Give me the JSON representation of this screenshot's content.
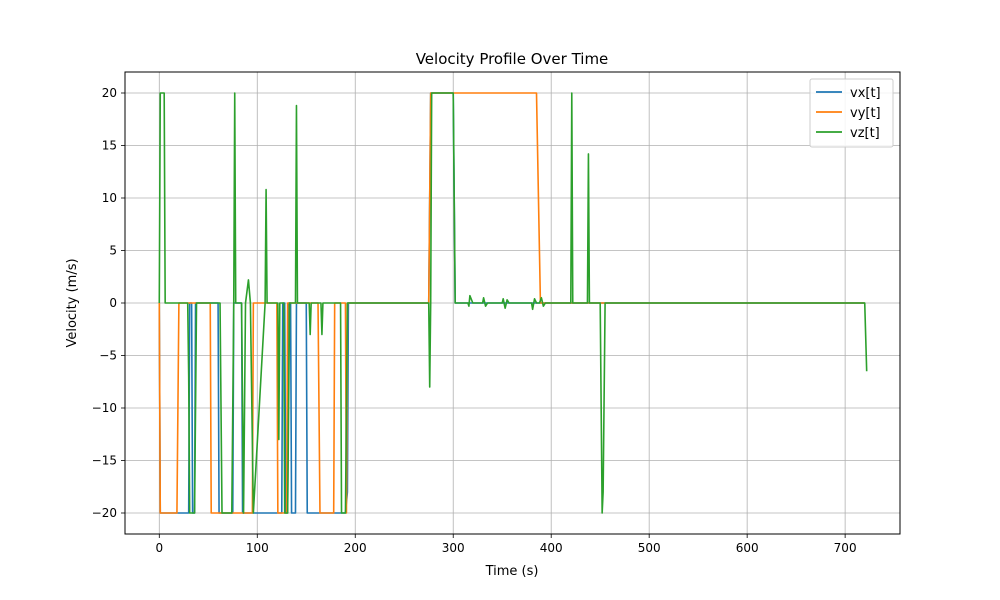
{
  "chart_data": {
    "type": "line",
    "title": "Velocity Profile Over Time",
    "xlabel": "Time (s)",
    "ylabel": "Velocity (m/s)",
    "xlim": [
      -35,
      756
    ],
    "ylim": [
      -22,
      22
    ],
    "xticks": [
      0,
      100,
      200,
      300,
      400,
      500,
      600,
      700
    ],
    "yticks": [
      -20,
      -15,
      -10,
      -5,
      0,
      5,
      10,
      15,
      20
    ],
    "grid": true,
    "legend_position": "top-right",
    "series": [
      {
        "name": "vx[t]",
        "color": "#1f77b4",
        "points": [
          [
            0,
            0
          ],
          [
            1,
            -20
          ],
          [
            30,
            -20
          ],
          [
            31,
            0
          ],
          [
            33,
            0
          ],
          [
            34,
            -20
          ],
          [
            36,
            -20
          ],
          [
            37,
            0
          ],
          [
            60,
            0
          ],
          [
            61,
            -20
          ],
          [
            75,
            -20
          ],
          [
            76,
            0
          ],
          [
            84,
            0
          ],
          [
            85,
            -20
          ],
          [
            125,
            -20
          ],
          [
            126,
            0
          ],
          [
            128,
            0
          ],
          [
            129,
            -20
          ],
          [
            131,
            -20
          ],
          [
            132,
            0
          ],
          [
            134,
            0
          ],
          [
            135,
            -20
          ],
          [
            139,
            -20
          ],
          [
            140,
            0
          ],
          [
            150,
            0
          ],
          [
            151,
            -20
          ],
          [
            190,
            -20
          ],
          [
            192,
            -18
          ],
          [
            193,
            0
          ],
          [
            275,
            0
          ],
          [
            277,
            20
          ],
          [
            300,
            20
          ],
          [
            302,
            0
          ],
          [
            470,
            0
          ],
          [
            472,
            0
          ],
          [
            720,
            0
          ]
        ]
      },
      {
        "name": "vy[t]",
        "color": "#ff7f0e",
        "points": [
          [
            0,
            0
          ],
          [
            1,
            -20
          ],
          [
            18,
            -20
          ],
          [
            20,
            0
          ],
          [
            52,
            0
          ],
          [
            53,
            -20
          ],
          [
            95,
            -20
          ],
          [
            96,
            0
          ],
          [
            120,
            0
          ],
          [
            121,
            -20
          ],
          [
            130,
            -20
          ],
          [
            131,
            0
          ],
          [
            162,
            0
          ],
          [
            164,
            -20
          ],
          [
            178,
            -20
          ],
          [
            179,
            0
          ],
          [
            190,
            0
          ],
          [
            191,
            -20
          ],
          [
            192,
            0
          ],
          [
            275,
            0
          ],
          [
            277,
            20
          ],
          [
            385,
            20
          ],
          [
            389,
            0
          ],
          [
            470,
            0
          ],
          [
            720,
            0
          ]
        ]
      },
      {
        "name": "vz[t]",
        "color": "#2ca02c",
        "points": [
          [
            0,
            0
          ],
          [
            1,
            20
          ],
          [
            5,
            20
          ],
          [
            6,
            0
          ],
          [
            29,
            0
          ],
          [
            30,
            -7
          ],
          [
            31,
            -20
          ],
          [
            36,
            -20
          ],
          [
            38,
            0
          ],
          [
            62,
            0
          ],
          [
            64,
            -20
          ],
          [
            74,
            -20
          ],
          [
            76,
            0
          ],
          [
            77,
            20
          ],
          [
            78,
            0
          ],
          [
            84,
            0
          ],
          [
            86,
            -20
          ],
          [
            88,
            0
          ],
          [
            91,
            2.2
          ],
          [
            93,
            0
          ],
          [
            96,
            -20
          ],
          [
            108,
            0
          ],
          [
            109,
            10.8
          ],
          [
            110,
            0
          ],
          [
            121,
            0
          ],
          [
            122,
            -13
          ],
          [
            123,
            0
          ],
          [
            127,
            0
          ],
          [
            128,
            -20
          ],
          [
            131,
            -20
          ],
          [
            133,
            0
          ],
          [
            139,
            0
          ],
          [
            140,
            18.8
          ],
          [
            141,
            0
          ],
          [
            153,
            0
          ],
          [
            154,
            -3
          ],
          [
            155,
            0
          ],
          [
            165,
            0
          ],
          [
            166,
            -3
          ],
          [
            167,
            0
          ],
          [
            185,
            0
          ],
          [
            186,
            -20
          ],
          [
            190,
            -20
          ],
          [
            192,
            0
          ],
          [
            275,
            0
          ],
          [
            276,
            -8
          ],
          [
            277,
            0
          ],
          [
            278,
            20
          ],
          [
            300,
            20
          ],
          [
            302,
            0
          ],
          [
            315,
            0
          ],
          [
            316,
            -0.3
          ],
          [
            317,
            0.7
          ],
          [
            320,
            0
          ],
          [
            330,
            0
          ],
          [
            331,
            0.5
          ],
          [
            333,
            -0.3
          ],
          [
            335,
            0
          ],
          [
            350,
            0
          ],
          [
            351,
            0.4
          ],
          [
            353,
            -0.5
          ],
          [
            355,
            0.3
          ],
          [
            357,
            0
          ],
          [
            380,
            0
          ],
          [
            381,
            -0.6
          ],
          [
            383,
            0.4
          ],
          [
            385,
            0
          ],
          [
            388,
            0
          ],
          [
            390,
            0.5
          ],
          [
            392,
            -0.3
          ],
          [
            394,
            0
          ],
          [
            420,
            0
          ],
          [
            421,
            20
          ],
          [
            422,
            0
          ],
          [
            437,
            0
          ],
          [
            438,
            14.2
          ],
          [
            439,
            0
          ],
          [
            450,
            0
          ],
          [
            452,
            -20
          ],
          [
            453,
            -18
          ],
          [
            455,
            0
          ],
          [
            720,
            0
          ],
          [
            722,
            -6.5
          ]
        ]
      }
    ]
  }
}
